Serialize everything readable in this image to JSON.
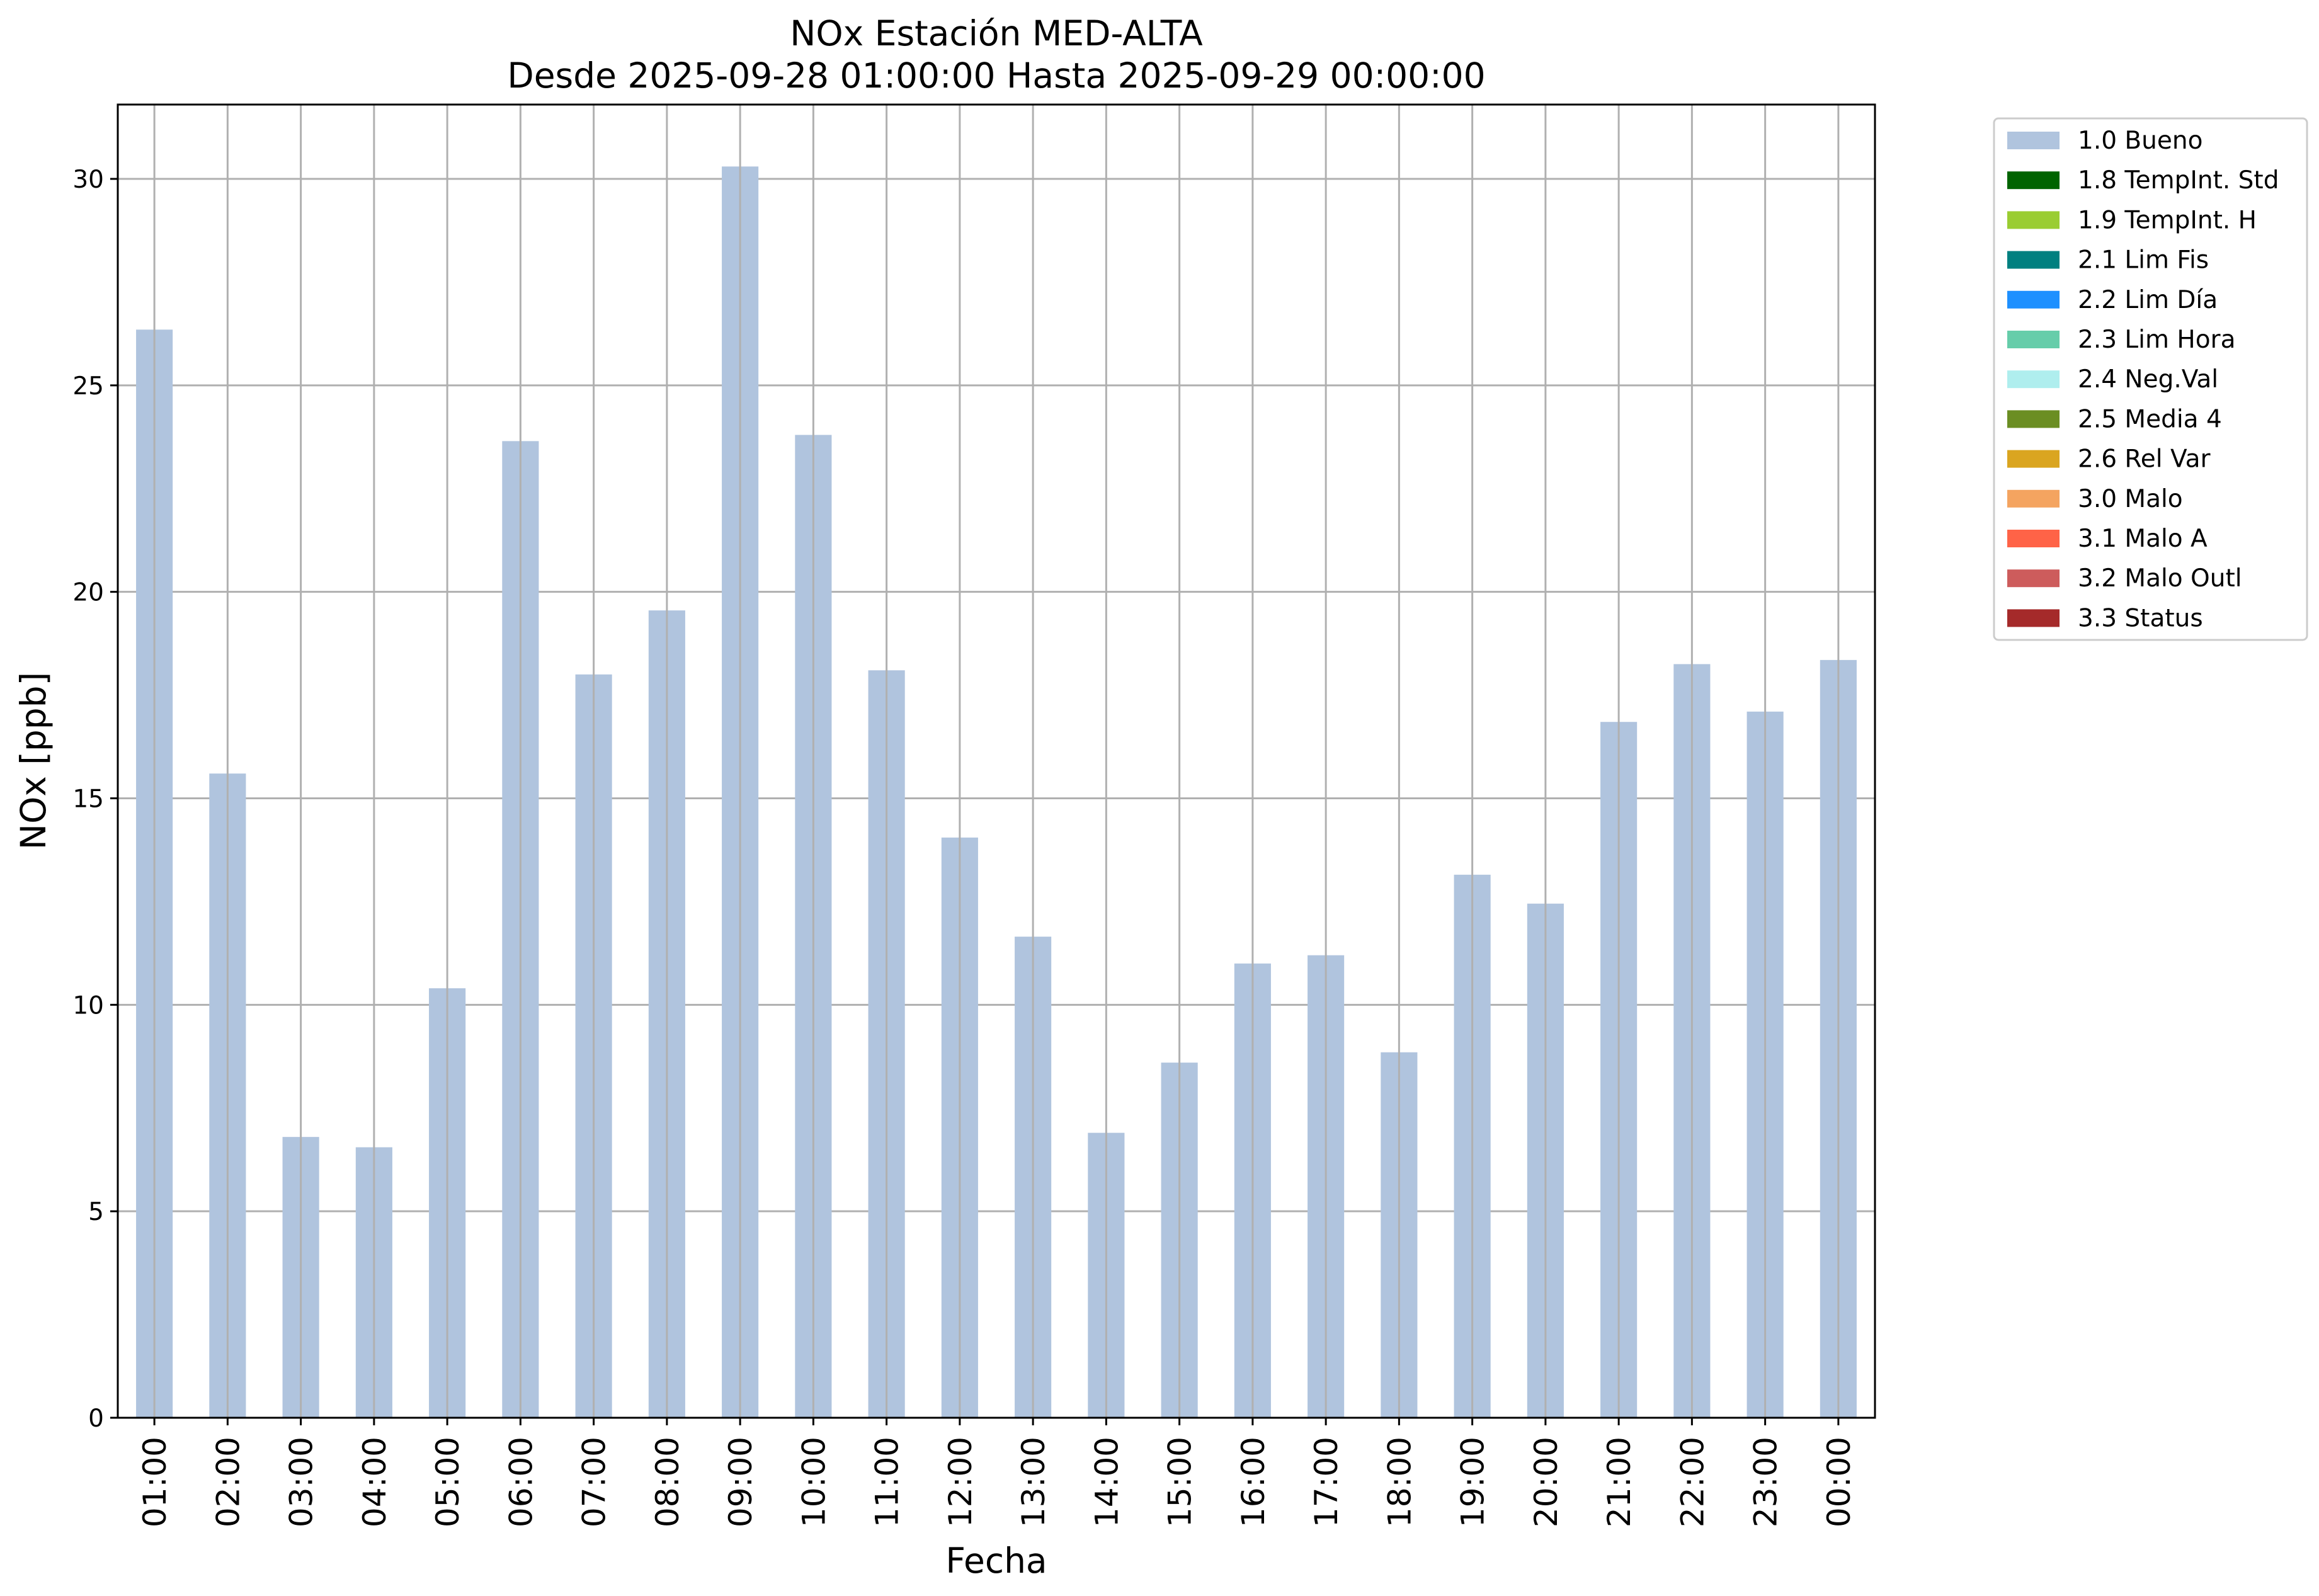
{
  "chart_data": {
    "type": "bar",
    "title": "NOx Estación MED-ALTA",
    "subtitle": "Desde 2025-09-28 01:00:00 Hasta 2025-09-29 00:00:00",
    "xlabel": "Fecha",
    "ylabel": "NOx [ppb]",
    "ylim": [
      0,
      31.8
    ],
    "yticks": [
      0,
      5,
      10,
      15,
      20,
      25,
      30
    ],
    "grid": true,
    "legend_position": "outside-top-right",
    "categories": [
      "01:00",
      "02:00",
      "03:00",
      "04:00",
      "05:00",
      "06:00",
      "07:00",
      "08:00",
      "09:00",
      "10:00",
      "11:00",
      "12:00",
      "13:00",
      "14:00",
      "15:00",
      "16:00",
      "17:00",
      "18:00",
      "19:00",
      "20:00",
      "21:00",
      "22:00",
      "23:00",
      "00:00"
    ],
    "series": [
      {
        "name": "1.0 Bueno",
        "color": "#b0c4de",
        "values": [
          26.35,
          15.6,
          6.8,
          6.55,
          10.4,
          23.65,
          18.0,
          19.55,
          30.3,
          23.8,
          18.1,
          14.05,
          11.65,
          6.9,
          8.6,
          11.0,
          11.2,
          8.85,
          13.15,
          12.45,
          16.85,
          18.25,
          17.1,
          18.35
        ]
      }
    ],
    "legend": [
      {
        "label": "1.0 Bueno",
        "color": "#b0c4de"
      },
      {
        "label": "1.8 TempInt. Std",
        "color": "#006400"
      },
      {
        "label": "1.9 TempInt. H",
        "color": "#9acd32"
      },
      {
        "label": "2.1 Lim Fis",
        "color": "#008080"
      },
      {
        "label": "2.2 Lim Día",
        "color": "#1e90ff"
      },
      {
        "label": "2.3 Lim Hora",
        "color": "#66cdaa"
      },
      {
        "label": "2.4 Neg.Val",
        "color": "#afeeee"
      },
      {
        "label": "2.5 Media 4",
        "color": "#6b8e23"
      },
      {
        "label": "2.6 Rel Var",
        "color": "#daa520"
      },
      {
        "label": "3.0 Malo",
        "color": "#f4a460"
      },
      {
        "label": "3.1 Malo A",
        "color": "#ff6347"
      },
      {
        "label": "3.2 Malo Outl",
        "color": "#cd5c5c"
      },
      {
        "label": "3.3 Status",
        "color": "#a52a2a"
      }
    ]
  }
}
